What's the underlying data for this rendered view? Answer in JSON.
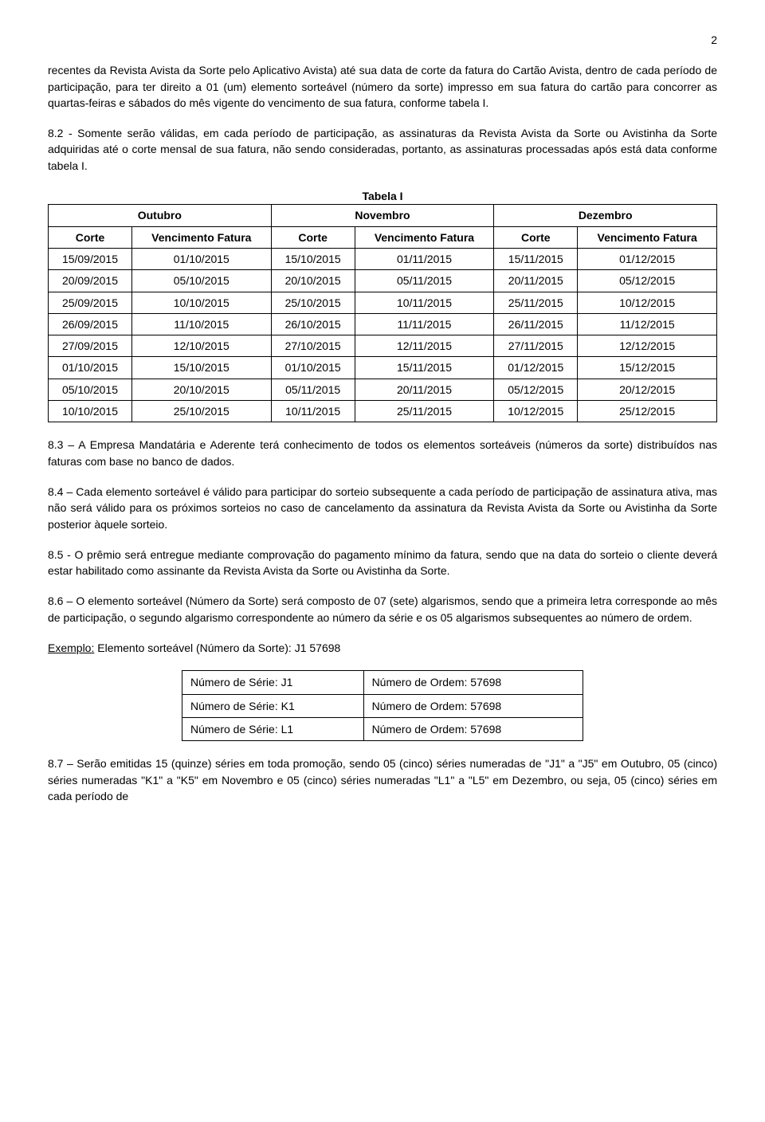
{
  "page_number": "2",
  "para1": "recentes da Revista Avista da Sorte pelo Aplicativo Avista) até sua data de corte da fatura do Cartão Avista, dentro de cada período de participação, para ter direito a 01 (um) elemento sorteável (número da sorte) impresso em sua fatura do cartão para concorrer as quartas-feiras e sábados do mês vigente do vencimento de sua fatura, conforme tabela I.",
  "para2": "8.2 - Somente serão válidas, em cada período de participação, as assinaturas da Revista Avista da Sorte ou Avistinha da Sorte adquiridas até o corte mensal de sua fatura, não sendo consideradas, portanto, as assinaturas processadas após está data conforme tabela I.",
  "tabela1": {
    "caption": "Tabela I",
    "months": [
      "Outubro",
      "Novembro",
      "Dezembro"
    ],
    "sub_headers": {
      "corte": "Corte",
      "venc": "Vencimento Fatura"
    },
    "rows": [
      [
        "15/09/2015",
        "01/10/2015",
        "15/10/2015",
        "01/11/2015",
        "15/11/2015",
        "01/12/2015"
      ],
      [
        "20/09/2015",
        "05/10/2015",
        "20/10/2015",
        "05/11/2015",
        "20/11/2015",
        "05/12/2015"
      ],
      [
        "25/09/2015",
        "10/10/2015",
        "25/10/2015",
        "10/11/2015",
        "25/11/2015",
        "10/12/2015"
      ],
      [
        "26/09/2015",
        "11/10/2015",
        "26/10/2015",
        "11/11/2015",
        "26/11/2015",
        "11/12/2015"
      ],
      [
        "27/09/2015",
        "12/10/2015",
        "27/10/2015",
        "12/11/2015",
        "27/11/2015",
        "12/12/2015"
      ],
      [
        "01/10/2015",
        "15/10/2015",
        "01/10/2015",
        "15/11/2015",
        "01/12/2015",
        "15/12/2015"
      ],
      [
        "05/10/2015",
        "20/10/2015",
        "05/11/2015",
        "20/11/2015",
        "05/12/2015",
        "20/12/2015"
      ],
      [
        "10/10/2015",
        "25/10/2015",
        "10/11/2015",
        "25/11/2015",
        "10/12/2015",
        "25/12/2015"
      ]
    ]
  },
  "para3": "8.3 – A Empresa Mandatária e Aderente terá conhecimento de todos os elementos sorteáveis (números da sorte) distribuídos nas faturas com base no banco de dados.",
  "para4": "8.4 – Cada elemento sorteável é válido para participar do sorteio subsequente a cada período de participação de assinatura ativa, mas não será válido para os próximos sorteios no caso de cancelamento da assinatura da Revista Avista da Sorte ou Avistinha da Sorte posterior àquele sorteio.",
  "para5": "8.5 - O prêmio será entregue mediante comprovação do pagamento mínimo da fatura, sendo que na data do sorteio o cliente deverá estar habilitado como assinante da Revista Avista da Sorte ou Avistinha da Sorte.",
  "para6": "8.6 – O elemento sorteável (Número da Sorte) será composto de 07 (sete) algarismos, sendo que a primeira letra corresponde ao mês de participação, o segundo algarismo correspondente ao número da série e os 05 algarismos subsequentes ao número de ordem.",
  "exemplo_label": "Exemplo:",
  "exemplo_text": " Elemento sorteável (Número da Sorte): J1 57698",
  "tabela2": {
    "rows": [
      [
        "Número de Série: J1",
        "Número de Ordem: 57698"
      ],
      [
        "Número de Série: K1",
        "Número de Ordem: 57698"
      ],
      [
        "Número de Série: L1",
        "Número de Ordem: 57698"
      ]
    ]
  },
  "para7": "8.7 – Serão emitidas 15 (quinze) séries em toda promoção, sendo 05 (cinco) séries numeradas de \"J1\" a \"J5\" em Outubro, 05 (cinco) séries numeradas \"K1\" a \"K5\" em Novembro e 05 (cinco) séries numeradas \"L1\" a \"L5\" em Dezembro, ou seja, 05 (cinco) séries em cada período de"
}
